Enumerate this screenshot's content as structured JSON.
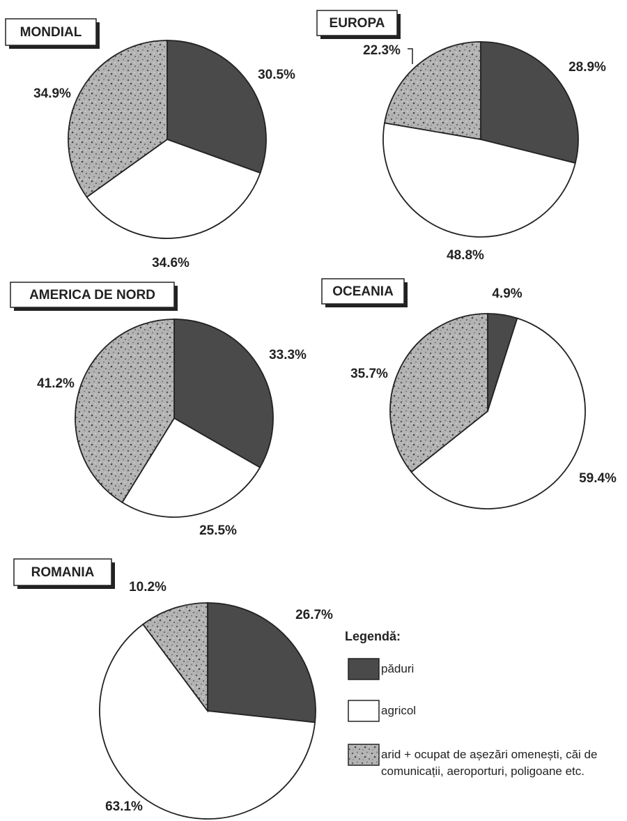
{
  "chart_data": [
    {
      "type": "pie",
      "title": "MONDIAL",
      "values": [
        30.5,
        34.6,
        34.9
      ],
      "value_labels": [
        "30.5%",
        "34.6%",
        "34.9%"
      ]
    },
    {
      "type": "pie",
      "title": "EUROPA",
      "values": [
        28.9,
        48.8,
        22.3
      ],
      "value_labels": [
        "28.9%",
        "48.8%",
        "22.3%"
      ]
    },
    {
      "type": "pie",
      "title": "AMERICA DE NORD",
      "values": [
        33.3,
        25.5,
        41.2
      ],
      "value_labels": [
        "33.3%",
        "25.5%",
        "41.2%"
      ]
    },
    {
      "type": "pie",
      "title": "OCEANIA",
      "values": [
        4.9,
        59.4,
        35.7
      ],
      "value_labels": [
        "4.9%",
        "59.4%",
        "35.7%"
      ]
    },
    {
      "type": "pie",
      "title": "ROMANIA",
      "values": [
        26.7,
        63.1,
        10.2
      ],
      "value_labels": [
        "26.7%",
        "63.1%",
        "10.2%"
      ]
    }
  ],
  "legend": {
    "title": "Legendă:",
    "categories": [
      "păduri",
      "agricol",
      "arid + ocupat de așezări omenești, căi de comunicații, aeroporturi, poligoane etc."
    ],
    "colors": [
      "#4a4a4a",
      "#ffffff",
      "#b4b4b4"
    ]
  }
}
